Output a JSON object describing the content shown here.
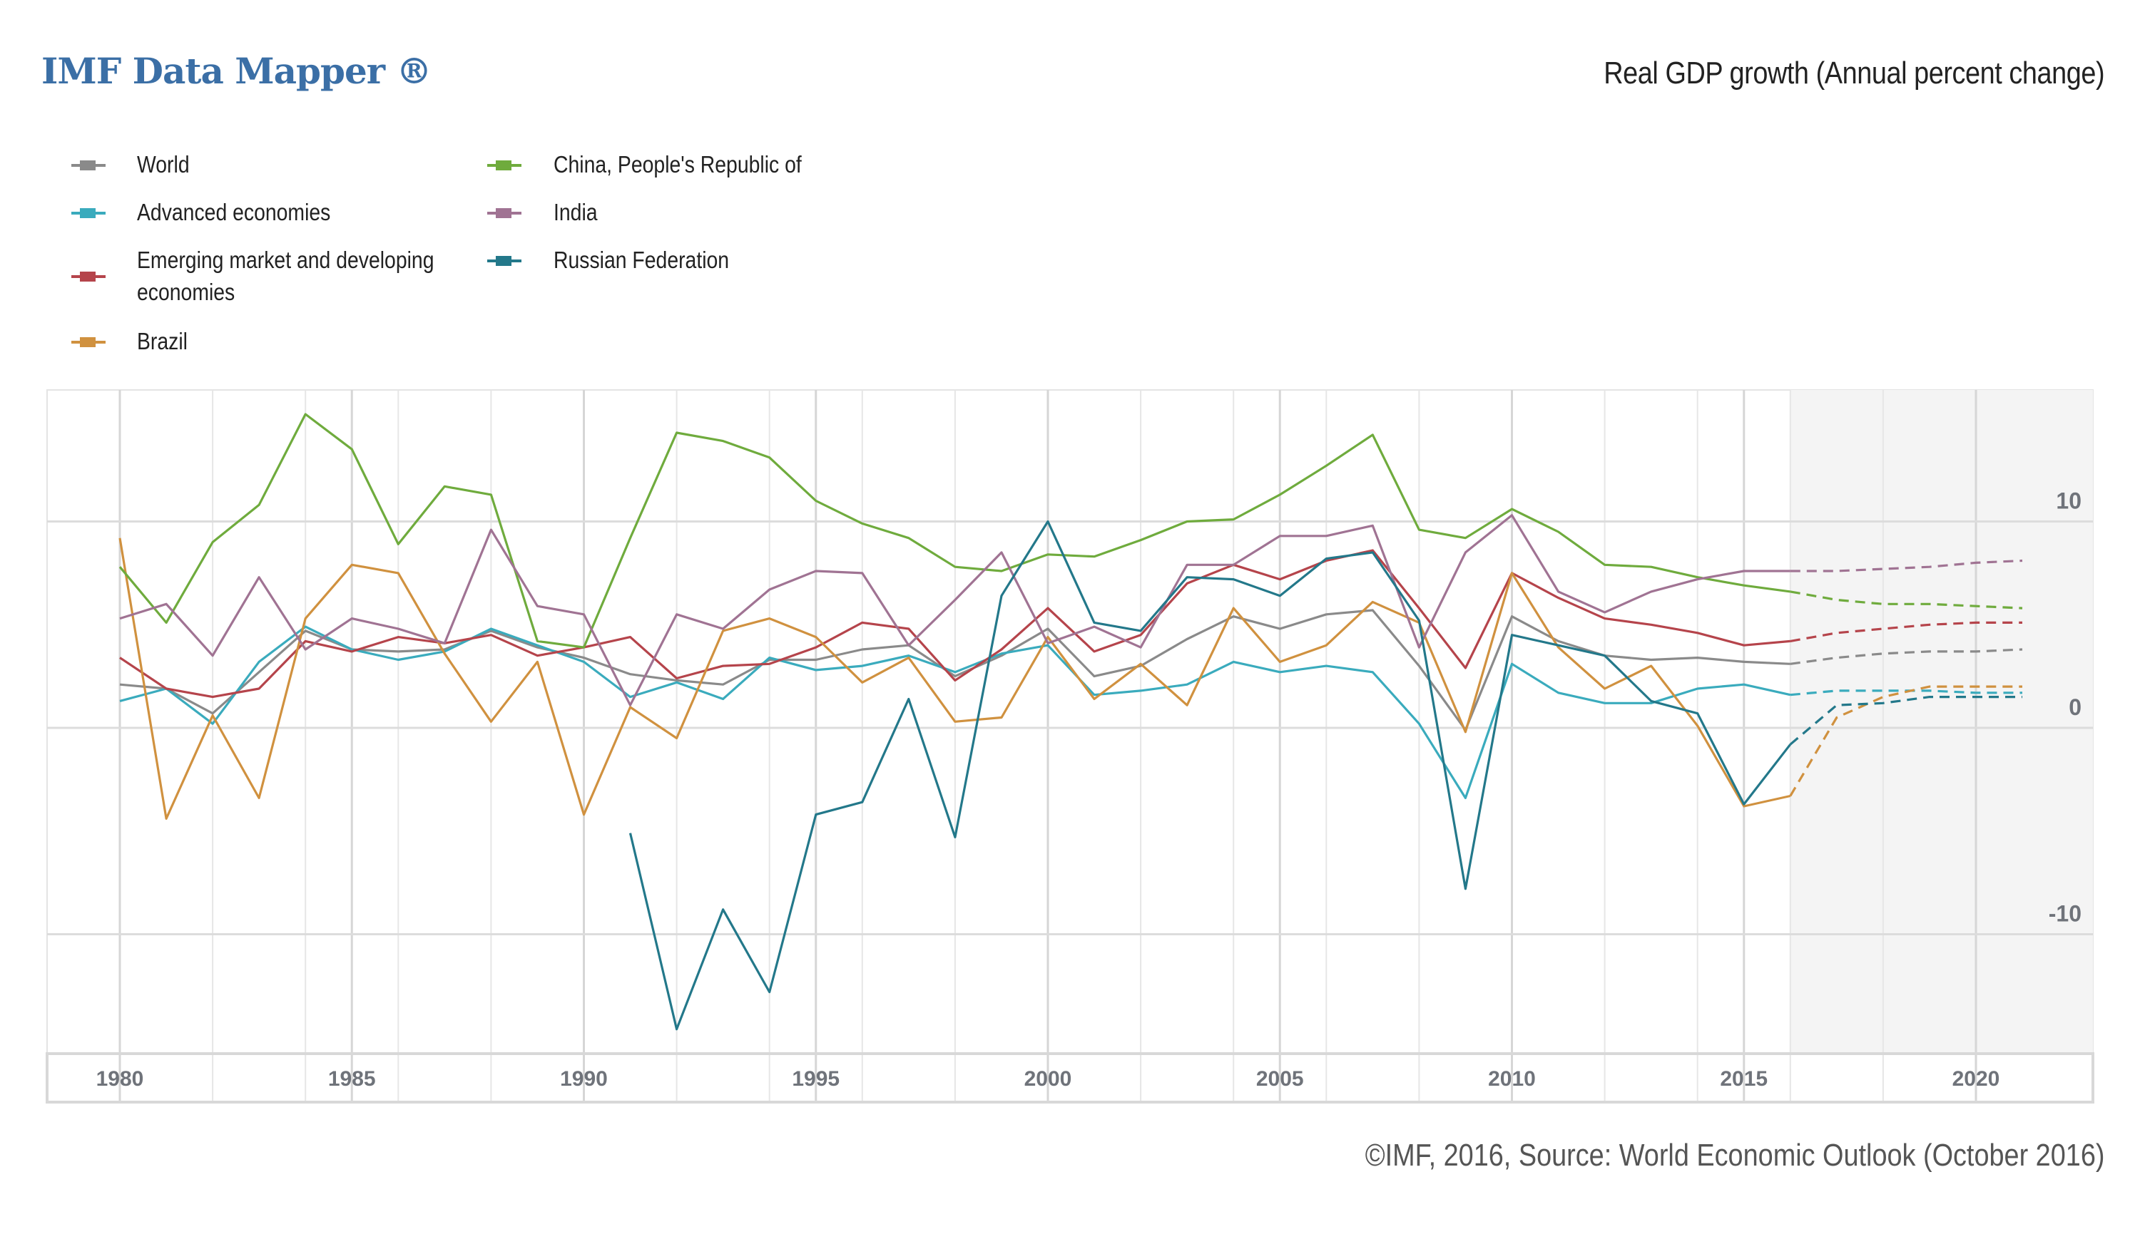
{
  "header": {
    "brand": "IMF Data Mapper ®",
    "chart_title": "Real GDP growth (Annual percent change)"
  },
  "footer": {
    "source": "©IMF, 2016, Source: World Economic Outlook (October 2016)"
  },
  "legend": [
    {
      "label": "World",
      "color": "#8a8a8a"
    },
    {
      "label": "Advanced economies",
      "color": "#3aabbd"
    },
    {
      "label": "Emerging market and developing economies",
      "label_lines": [
        "Emerging market and developing",
        "economies"
      ],
      "color": "#b5444b"
    },
    {
      "label": "Brazil",
      "color": "#d0913f"
    },
    {
      "label": "China, People's Republic of",
      "color": "#6fab3d"
    },
    {
      "label": "India",
      "color": "#a07393"
    },
    {
      "label": "Russian Federation",
      "color": "#23788a"
    }
  ],
  "chart_data": {
    "type": "line",
    "title": "Real GDP growth (Annual percent change)",
    "xlabel": "",
    "ylabel": "",
    "x_range": [
      1980,
      2021
    ],
    "ylim": [
      -16,
      16
    ],
    "x_ticks": [
      1980,
      1985,
      1990,
      1995,
      2000,
      2005,
      2010,
      2015,
      2020
    ],
    "y_ticks": [
      10,
      0,
      -10
    ],
    "y_axis_position": "right",
    "grid": true,
    "legend_position": "top-left",
    "forecast_start": 2016,
    "forecast_style": "dashed lines on shaded background",
    "x": [
      1980,
      1981,
      1982,
      1983,
      1984,
      1985,
      1986,
      1987,
      1988,
      1989,
      1990,
      1991,
      1992,
      1993,
      1994,
      1995,
      1996,
      1997,
      1998,
      1999,
      2000,
      2001,
      2002,
      2003,
      2004,
      2005,
      2006,
      2007,
      2008,
      2009,
      2010,
      2011,
      2012,
      2013,
      2014,
      2015,
      2016,
      2017,
      2018,
      2019,
      2020,
      2021
    ],
    "series": [
      {
        "name": "World",
        "color": "#8a8a8a",
        "values": [
          2.1,
          1.9,
          0.7,
          2.7,
          4.7,
          3.8,
          3.7,
          3.8,
          4.7,
          3.9,
          3.4,
          2.6,
          2.3,
          2.1,
          3.3,
          3.3,
          3.8,
          4.0,
          2.5,
          3.5,
          4.8,
          2.5,
          3.0,
          4.3,
          5.4,
          4.8,
          5.5,
          5.7,
          3.0,
          -0.1,
          5.4,
          4.2,
          3.5,
          3.3,
          3.4,
          3.2,
          3.1,
          3.4,
          3.6,
          3.7,
          3.7,
          3.8
        ]
      },
      {
        "name": "Advanced economies",
        "color": "#3aabbd",
        "values": [
          1.3,
          1.9,
          0.2,
          3.2,
          4.9,
          3.8,
          3.3,
          3.7,
          4.8,
          4.0,
          3.2,
          1.5,
          2.2,
          1.4,
          3.4,
          2.8,
          3.0,
          3.5,
          2.7,
          3.6,
          4.0,
          1.6,
          1.8,
          2.1,
          3.2,
          2.7,
          3.0,
          2.7,
          0.2,
          -3.4,
          3.1,
          1.7,
          1.2,
          1.2,
          1.9,
          2.1,
          1.6,
          1.8,
          1.8,
          1.8,
          1.7,
          1.7
        ]
      },
      {
        "name": "Emerging market and developing economies",
        "color": "#b5444b",
        "values": [
          3.4,
          1.9,
          1.5,
          1.9,
          4.2,
          3.7,
          4.4,
          4.1,
          4.5,
          3.5,
          3.9,
          4.4,
          2.4,
          3.0,
          3.1,
          3.9,
          5.1,
          4.8,
          2.3,
          3.8,
          5.8,
          3.7,
          4.5,
          7.0,
          7.9,
          7.2,
          8.1,
          8.6,
          5.8,
          2.9,
          7.5,
          6.3,
          5.3,
          5.0,
          4.6,
          4.0,
          4.2,
          4.6,
          4.8,
          5.0,
          5.1,
          5.1
        ]
      },
      {
        "name": "Brazil",
        "color": "#d0913f",
        "values": [
          9.2,
          -4.4,
          0.6,
          -3.4,
          5.3,
          7.9,
          7.5,
          3.6,
          0.3,
          3.2,
          -4.2,
          1.0,
          -0.5,
          4.7,
          5.3,
          4.4,
          2.2,
          3.4,
          0.3,
          0.5,
          4.4,
          1.4,
          3.1,
          1.1,
          5.8,
          3.2,
          4.0,
          6.1,
          5.1,
          -0.2,
          7.5,
          3.9,
          1.9,
          3.0,
          0.1,
          -3.8,
          -3.3,
          0.5,
          1.5,
          2.0,
          2.0,
          2.0
        ]
      },
      {
        "name": "China, People's Republic of",
        "color": "#6fab3d",
        "values": [
          7.8,
          5.1,
          9.0,
          10.8,
          15.2,
          13.5,
          8.9,
          11.7,
          11.3,
          4.2,
          3.9,
          9.2,
          14.3,
          13.9,
          13.1,
          11.0,
          9.9,
          9.2,
          7.8,
          7.6,
          8.4,
          8.3,
          9.1,
          10.0,
          10.1,
          11.3,
          12.7,
          14.2,
          9.6,
          9.2,
          10.6,
          9.5,
          7.9,
          7.8,
          7.3,
          6.9,
          6.6,
          6.2,
          6.0,
          6.0,
          5.9,
          5.8
        ]
      },
      {
        "name": "India",
        "color": "#a07393",
        "values": [
          5.3,
          6.0,
          3.5,
          7.3,
          3.8,
          5.3,
          4.8,
          4.1,
          9.6,
          5.9,
          5.5,
          1.1,
          5.5,
          4.8,
          6.7,
          7.6,
          7.5,
          4.0,
          6.2,
          8.5,
          4.1,
          4.9,
          3.9,
          7.9,
          7.9,
          9.3,
          9.3,
          9.8,
          3.9,
          8.5,
          10.3,
          6.6,
          5.6,
          6.6,
          7.2,
          7.6,
          7.6,
          7.6,
          7.7,
          7.8,
          8.0,
          8.1
        ]
      },
      {
        "name": "Russian Federation",
        "color": "#23788a",
        "values": [
          null,
          null,
          null,
          null,
          null,
          null,
          null,
          null,
          null,
          null,
          null,
          -5.1,
          -14.6,
          -8.8,
          -12.8,
          -4.2,
          -3.6,
          1.4,
          -5.3,
          6.4,
          10.0,
          5.1,
          4.7,
          7.3,
          7.2,
          6.4,
          8.2,
          8.5,
          5.2,
          -7.8,
          4.5,
          4.0,
          3.5,
          1.3,
          0.7,
          -3.7,
          -0.8,
          1.1,
          1.2,
          1.5,
          1.5,
          1.5
        ]
      }
    ]
  }
}
